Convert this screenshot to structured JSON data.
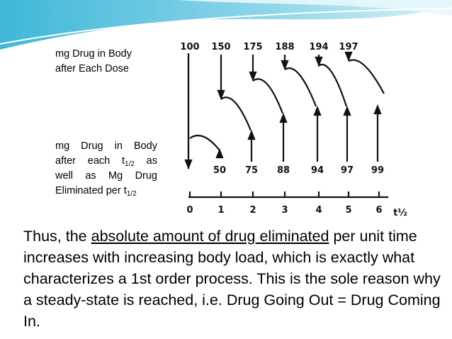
{
  "labels": {
    "dose_line1": "mg Drug in Body",
    "dose_line2": "after Each Dose",
    "elim_line1": "mg Drug in Body",
    "elim_line2a": "after each t",
    "elim_sub1": "1/2",
    "elim_line2b": " as",
    "elim_line3": "well as Mg Drug",
    "elim_line4": "Eliminated per t",
    "elim_sub2": "1/2"
  },
  "figure": {
    "top_labels": [
      "100",
      "150",
      "175",
      "188",
      "194",
      "197"
    ],
    "bottom_labels": [
      "50",
      "75",
      "88",
      "94",
      "97",
      "99"
    ],
    "x_ticks": [
      "0",
      "1",
      "2",
      "3",
      "4",
      "5",
      "6"
    ],
    "x_label": "t½"
  },
  "paragraph": {
    "before": "Thus, the ",
    "underlined": "absolute amount of drug eliminated",
    "after": " per unit time increases with increasing body load, which is exactly what characterizes a 1st order process. This is the sole reason why a steady-state is reached, i.e. Drug Going Out = Drug Coming In."
  }
}
